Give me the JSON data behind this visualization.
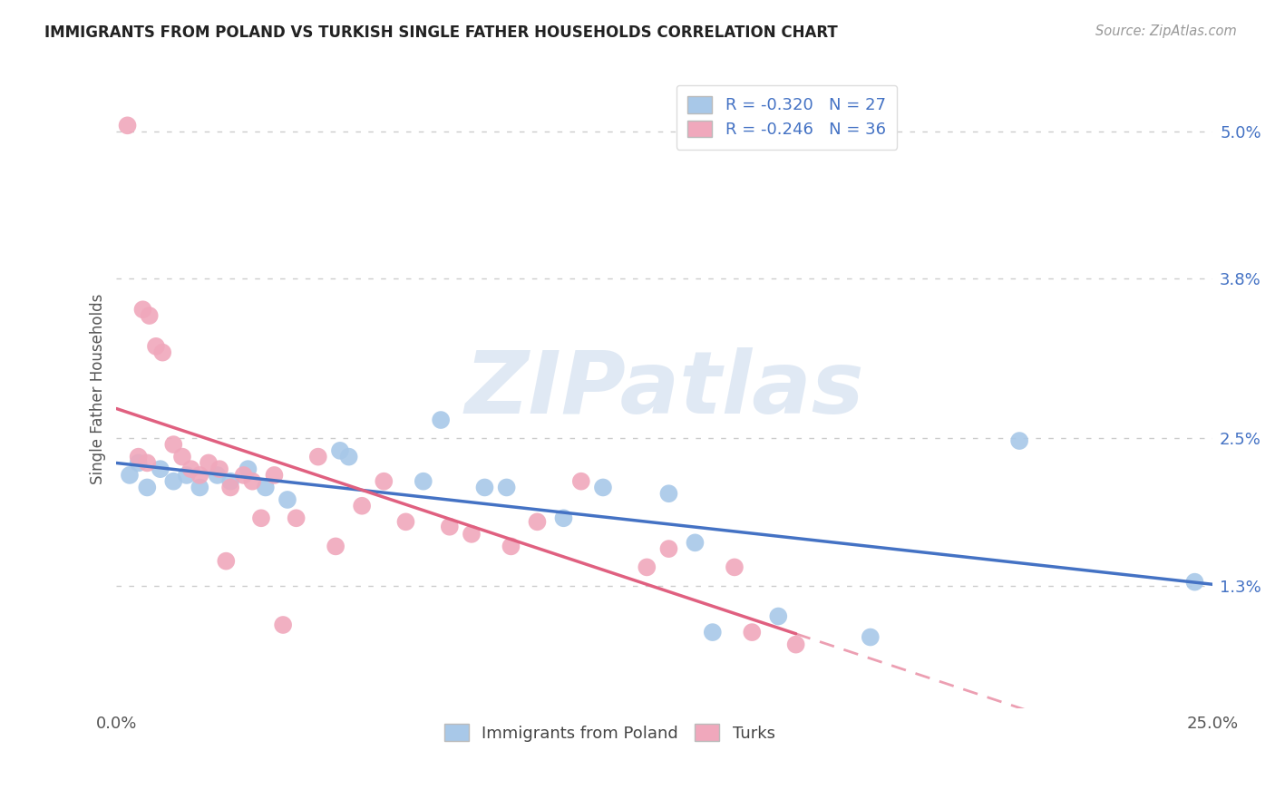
{
  "title": "IMMIGRANTS FROM POLAND VS TURKISH SINGLE FATHER HOUSEHOLDS CORRELATION CHART",
  "source": "Source: ZipAtlas.com",
  "ylabel": "Single Father Households",
  "ytick_labels": [
    "1.3%",
    "2.5%",
    "3.8%",
    "5.0%"
  ],
  "ytick_values": [
    1.3,
    2.5,
    3.8,
    5.0
  ],
  "xtick_values": [
    0.0,
    5.0,
    10.0,
    15.0,
    20.0,
    25.0
  ],
  "xtick_labels": [
    "0.0%",
    "",
    "",
    "",
    "",
    "25.0%"
  ],
  "xlim": [
    0.0,
    25.0
  ],
  "ylim": [
    0.3,
    5.5
  ],
  "legend1_R": "-0.320",
  "legend1_N": "27",
  "legend2_R": "-0.246",
  "legend2_N": "36",
  "blue_color": "#A8C8E8",
  "pink_color": "#F0A8BC",
  "blue_line_color": "#4472C4",
  "pink_line_color": "#E06080",
  "blue_scatter": [
    [
      0.3,
      2.2
    ],
    [
      0.5,
      2.3
    ],
    [
      0.7,
      2.1
    ],
    [
      1.0,
      2.25
    ],
    [
      1.3,
      2.15
    ],
    [
      1.6,
      2.2
    ],
    [
      1.9,
      2.1
    ],
    [
      2.3,
      2.2
    ],
    [
      2.6,
      2.15
    ],
    [
      3.0,
      2.25
    ],
    [
      3.4,
      2.1
    ],
    [
      3.9,
      2.0
    ],
    [
      5.1,
      2.4
    ],
    [
      5.3,
      2.35
    ],
    [
      7.4,
      2.65
    ],
    [
      7.0,
      2.15
    ],
    [
      8.4,
      2.1
    ],
    [
      8.9,
      2.1
    ],
    [
      10.2,
      1.85
    ],
    [
      11.1,
      2.1
    ],
    [
      12.6,
      2.05
    ],
    [
      13.2,
      1.65
    ],
    [
      13.6,
      0.92
    ],
    [
      15.1,
      1.05
    ],
    [
      17.2,
      0.88
    ],
    [
      20.6,
      2.48
    ],
    [
      24.6,
      1.33
    ]
  ],
  "pink_scatter": [
    [
      0.25,
      5.05
    ],
    [
      0.6,
      3.55
    ],
    [
      0.75,
      3.5
    ],
    [
      0.9,
      3.25
    ],
    [
      1.05,
      3.2
    ],
    [
      0.5,
      2.35
    ],
    [
      0.7,
      2.3
    ],
    [
      1.3,
      2.45
    ],
    [
      1.5,
      2.35
    ],
    [
      1.7,
      2.25
    ],
    [
      1.9,
      2.2
    ],
    [
      2.1,
      2.3
    ],
    [
      2.35,
      2.25
    ],
    [
      2.6,
      2.1
    ],
    [
      2.9,
      2.2
    ],
    [
      3.1,
      2.15
    ],
    [
      3.3,
      1.85
    ],
    [
      3.6,
      2.2
    ],
    [
      4.1,
      1.85
    ],
    [
      4.6,
      2.35
    ],
    [
      5.6,
      1.95
    ],
    [
      6.1,
      2.15
    ],
    [
      6.6,
      1.82
    ],
    [
      7.6,
      1.78
    ],
    [
      2.5,
      1.5
    ],
    [
      3.8,
      0.98
    ],
    [
      8.1,
      1.72
    ],
    [
      9.6,
      1.82
    ],
    [
      10.6,
      2.15
    ],
    [
      12.1,
      1.45
    ],
    [
      12.6,
      1.6
    ],
    [
      14.1,
      1.45
    ],
    [
      5.0,
      1.62
    ],
    [
      9.0,
      1.62
    ],
    [
      14.5,
      0.92
    ],
    [
      15.5,
      0.82
    ]
  ],
  "watermark_text": "ZIPatlas",
  "background_color": "#FFFFFF",
  "grid_color": "#CCCCCC"
}
